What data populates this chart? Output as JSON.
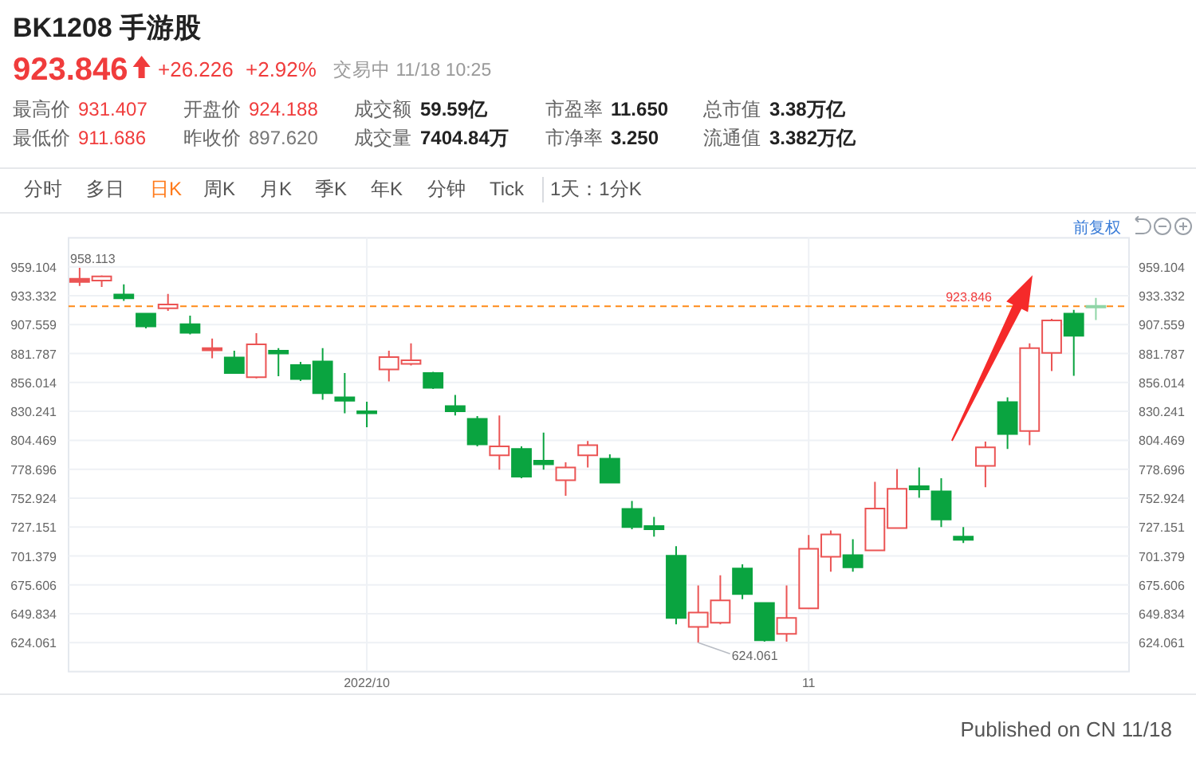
{
  "chart_data": {
    "type": "candlestick",
    "title": "BK1208 手游股",
    "categories": [
      null,
      null,
      null,
      null,
      null,
      null,
      null,
      null,
      null,
      null,
      null,
      null,
      null,
      "2022/10",
      null,
      null,
      null,
      null,
      null,
      null,
      null,
      null,
      null,
      null,
      null,
      null,
      null,
      null,
      null,
      null,
      null,
      null,
      null,
      "11",
      null,
      null,
      null,
      null,
      null,
      null,
      null,
      null,
      null,
      null,
      null,
      null,
      null
    ],
    "ohlc": [
      [
        945.5,
        958.113,
        942.1,
        948.5
      ],
      [
        946.8,
        951.4,
        941.1,
        950.6
      ],
      [
        934.4,
        943.5,
        928.7,
        931.1
      ],
      [
        917.4,
        918.0,
        904.2,
        906.0
      ],
      [
        922.2,
        935.0,
        919.8,
        925.5
      ],
      [
        908.0,
        915.5,
        898.9,
        900.3
      ],
      [
        884.7,
        895.2,
        877.6,
        886.7
      ],
      [
        878.2,
        884.3,
        863.7,
        864.4
      ],
      [
        860.6,
        899.9,
        859.7,
        890.0
      ],
      [
        884.3,
        886.7,
        861.6,
        881.9
      ],
      [
        871.5,
        874.3,
        857.3,
        859.1
      ],
      [
        874.8,
        886.7,
        840.7,
        846.4
      ],
      [
        842.7,
        864.4,
        828.5,
        839.8
      ],
      [
        830.3,
        838.8,
        816.1,
        828.5
      ],
      [
        867.7,
        884.3,
        856.9,
        878.6
      ],
      [
        872.5,
        890.9,
        871.1,
        875.7
      ],
      [
        864.4,
        865.4,
        850.2,
        851.2
      ],
      [
        835.0,
        844.9,
        826.5,
        830.3
      ],
      [
        823.6,
        826.1,
        799.1,
        800.9
      ],
      [
        791.0,
        826.5,
        778.2,
        799.1
      ],
      [
        796.7,
        799.1,
        770.7,
        772.1
      ],
      [
        786.3,
        811.4,
        778.2,
        783.0
      ],
      [
        768.8,
        784.9,
        755.1,
        780.2
      ],
      [
        791.0,
        803.8,
        780.2,
        800.1
      ],
      [
        788.1,
        792.0,
        766.0,
        766.8
      ],
      [
        743.3,
        750.4,
        725.2,
        727.1
      ],
      [
        728.1,
        736.2,
        718.6,
        725.2
      ],
      [
        701.5,
        710.0,
        640.5,
        646.1
      ],
      [
        638.2,
        675.1,
        624.061,
        651.0
      ],
      [
        641.9,
        684.1,
        640.5,
        661.8
      ],
      [
        690.2,
        694.0,
        662.8,
        667.4
      ],
      [
        659.5,
        659.5,
        625.0,
        626.3
      ],
      [
        631.9,
        675.1,
        625.0,
        646.1
      ],
      [
        654.7,
        720.0,
        654.0,
        707.8
      ],
      [
        700.7,
        724.2,
        687.3,
        720.5
      ],
      [
        702.1,
        716.3,
        687.3,
        691.2
      ],
      [
        706.3,
        767.4,
        706.0,
        743.7
      ],
      [
        726.2,
        778.8,
        726.0,
        761.2
      ],
      [
        763.6,
        780.2,
        753.2,
        760.7
      ],
      [
        758.9,
        770.7,
        727.1,
        733.8
      ],
      [
        718.6,
        727.1,
        712.9,
        715.7
      ],
      [
        781.6,
        803.3,
        762.6,
        798.1
      ],
      [
        838.4,
        842.7,
        796.7,
        810.0
      ],
      [
        812.8,
        890.9,
        800.1,
        886.7
      ],
      [
        882.4,
        912.7,
        866.2,
        911.3
      ],
      [
        917.4,
        920.8,
        862.0,
        897.62
      ],
      [
        924.188,
        931.407,
        911.686,
        923.846
      ]
    ],
    "colors": [
      "#eb5454",
      "#eb5454",
      "#0aa440",
      "#0aa440",
      "#eb5454",
      "#0aa440",
      "#eb5454",
      "#0aa440",
      "#eb5454",
      "#0aa440",
      "#0aa440",
      "#0aa440",
      "#0aa440",
      "#0aa440",
      "#eb5454",
      "#eb5454",
      "#0aa440",
      "#0aa440",
      "#0aa440",
      "#eb5454",
      "#0aa440",
      "#0aa440",
      "#eb5454",
      "#eb5454",
      "#0aa440",
      "#0aa440",
      "#0aa440",
      "#0aa440",
      "#eb5454",
      "#eb5454",
      "#0aa440",
      "#0aa440",
      "#eb5454",
      "#eb5454",
      "#eb5454",
      "#0aa440",
      "#eb5454",
      "#eb5454",
      "#0aa440",
      "#0aa440",
      "#0aa440",
      "#eb5454",
      "#0aa440",
      "#eb5454",
      "#eb5454",
      "#0aa440",
      "#8fd5a6"
    ],
    "ylim": [
      598.3,
      984.9
    ],
    "yticks": [
      959.104,
      933.332,
      907.559,
      881.787,
      856.014,
      830.241,
      804.469,
      778.696,
      752.924,
      727.151,
      701.379,
      675.606,
      649.834,
      624.061
    ],
    "y2lim": [
      598.3,
      984.9
    ],
    "y2ticks": [
      959.104,
      933.332,
      907.559,
      881.787,
      856.014,
      830.241,
      804.469,
      778.696,
      752.924,
      727.151,
      701.379,
      675.606,
      649.834,
      624.061
    ],
    "grid": true,
    "ref_lines": [
      {
        "axis": "y",
        "value": 923.846,
        "label": "923.846",
        "color": "#ff8a18",
        "line_style": "dashed"
      }
    ],
    "annotations": [
      "923.846",
      "+26.226",
      "+2.92%",
      "交易中 11/18 10:25",
      "最高价",
      "931.407",
      "开盘价",
      "924.188",
      "成交额",
      "59.59亿",
      "市盈率",
      "11.650",
      "总市值",
      "3.38万亿",
      "最低价",
      "911.686",
      "昨收价",
      "897.620",
      "成交量",
      "7404.84万",
      "市净率",
      "3.250",
      "流通值",
      "3.382万亿",
      "分时",
      "多日",
      "日K",
      "周K",
      "月K",
      "季K",
      "年K",
      "分钟",
      "Tick",
      "1天：1分K",
      "前复权",
      "Published on CN 11/18",
      {
        "text": "958.113",
        "y": 958.113
      },
      {
        "text": "624.061",
        "y": 624.061
      }
    ]
  }
}
